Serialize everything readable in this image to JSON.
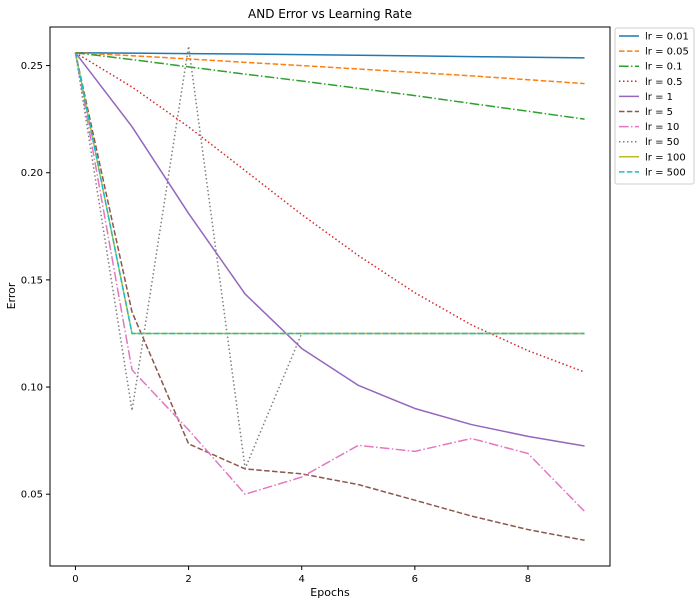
{
  "chart_data": {
    "type": "line",
    "title": "AND Error vs Learning Rate",
    "xlabel": "Epochs",
    "ylabel": "Error",
    "xlim": [
      -0.45,
      9.45
    ],
    "ylim": [
      0.0165,
      0.268
    ],
    "xticks": [
      0,
      2,
      4,
      6,
      8
    ],
    "yticks": [
      0.05,
      0.1,
      0.15,
      0.2,
      0.25
    ],
    "xtick_labels": [
      "0",
      "2",
      "4",
      "6",
      "8"
    ],
    "ytick_labels": [
      "0.05",
      "0.10",
      "0.15",
      "0.20",
      "0.25"
    ],
    "grid": false,
    "legend_position": "outside-right-top",
    "x": [
      0,
      1,
      2,
      3,
      4,
      5,
      6,
      7,
      8,
      9
    ],
    "series": [
      {
        "name": "lr = 0.01",
        "color": "#1f77b4",
        "dash": "solid",
        "values": [
          0.256,
          0.2558,
          0.2556,
          0.2554,
          0.2551,
          0.2548,
          0.2545,
          0.2542,
          0.2539,
          0.2536
        ]
      },
      {
        "name": "lr = 0.05",
        "color": "#ff7f0e",
        "dash": "dashed",
        "values": [
          0.256,
          0.2546,
          0.2531,
          0.2515,
          0.25,
          0.2484,
          0.2468,
          0.2452,
          0.2434,
          0.2416
        ]
      },
      {
        "name": "lr = 0.1",
        "color": "#2ca02c",
        "dash": "dashdot",
        "values": [
          0.256,
          0.2528,
          0.2494,
          0.246,
          0.2428,
          0.2394,
          0.236,
          0.2323,
          0.2287,
          0.225
        ]
      },
      {
        "name": "lr = 0.5",
        "color": "#d62728",
        "dash": "dotted",
        "values": [
          0.256,
          0.24,
          0.2214,
          0.201,
          0.1805,
          0.1614,
          0.144,
          0.129,
          0.117,
          0.107
        ]
      },
      {
        "name": "lr = 1",
        "color": "#9467bd",
        "dash": "solid",
        "values": [
          0.256,
          0.2215,
          0.181,
          0.1434,
          0.118,
          0.1008,
          0.09,
          0.0825,
          0.077,
          0.0725
        ]
      },
      {
        "name": "lr = 5",
        "color": "#8c564b",
        "dash": "dashed",
        "values": [
          0.256,
          0.135,
          0.0735,
          0.0618,
          0.0595,
          0.0545,
          0.0472,
          0.0398,
          0.0335,
          0.0285
        ]
      },
      {
        "name": "lr = 10",
        "color": "#e377c2",
        "dash": "dashdot",
        "values": [
          0.256,
          0.108,
          0.08,
          0.05,
          0.058,
          0.0728,
          0.07,
          0.076,
          0.069,
          0.042
        ]
      },
      {
        "name": "lr = 50",
        "color": "#7f7f7f",
        "dash": "dotted",
        "values": [
          0.256,
          0.089,
          0.259,
          0.062,
          0.125,
          0.125,
          0.125,
          0.125,
          0.125,
          0.125
        ]
      },
      {
        "name": "lr = 100",
        "color": "#bcbd22",
        "dash": "solid",
        "values": [
          0.256,
          0.125,
          0.125,
          0.125,
          0.125,
          0.125,
          0.125,
          0.125,
          0.125,
          0.125
        ]
      },
      {
        "name": "lr = 500",
        "color": "#17becf",
        "dash": "dashed",
        "values": [
          0.256,
          0.125,
          0.125,
          0.125,
          0.125,
          0.125,
          0.125,
          0.125,
          0.125,
          0.125
        ]
      }
    ]
  }
}
